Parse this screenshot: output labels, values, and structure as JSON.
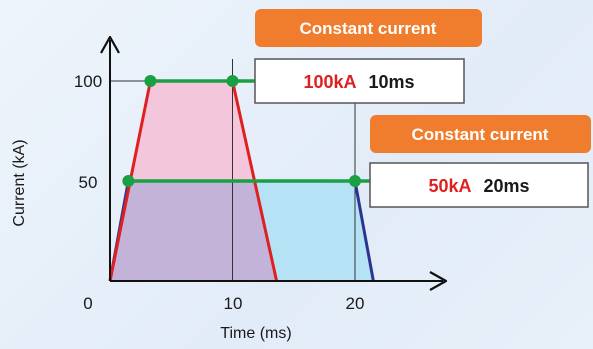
{
  "chart_data": {
    "type": "area",
    "xlabel": "Time (ms)",
    "ylabel": "Current (kA)",
    "x_ticks": [
      "0",
      "10",
      "20"
    ],
    "y_ticks": [
      "100",
      "50"
    ],
    "xlim": [
      0,
      27
    ],
    "ylim": [
      0,
      115
    ],
    "series": [
      {
        "x": [
          0,
          3.3,
          10,
          13.6
        ],
        "y": [
          0,
          100,
          100,
          0
        ],
        "color": "#e02020",
        "fill": "#f4c6dc",
        "flat_top": {
          "start": 3.3,
          "end": 10,
          "level": 100
        }
      },
      {
        "x": [
          0,
          1.5,
          20,
          21.5
        ],
        "y": [
          0,
          50,
          50,
          0
        ],
        "color": "#2b3590",
        "fill": "#b6e2f6",
        "flat_top": {
          "start": 1.5,
          "end": 20,
          "level": 50
        }
      }
    ],
    "overlap_fill": "#c4b3d9",
    "plateau_line_color": "#1aa043",
    "annotations": [
      {
        "badge": "Constant current",
        "current_text": "100kA",
        "duration_text": "10ms"
      },
      {
        "badge": "Constant current",
        "current_text": "50kA",
        "duration_text": "20ms"
      }
    ],
    "colors": {
      "badge_bg": "#f07d2d",
      "current_text": "#e02020",
      "duration_text": "#1a1a1a",
      "axis": "#111111"
    }
  }
}
